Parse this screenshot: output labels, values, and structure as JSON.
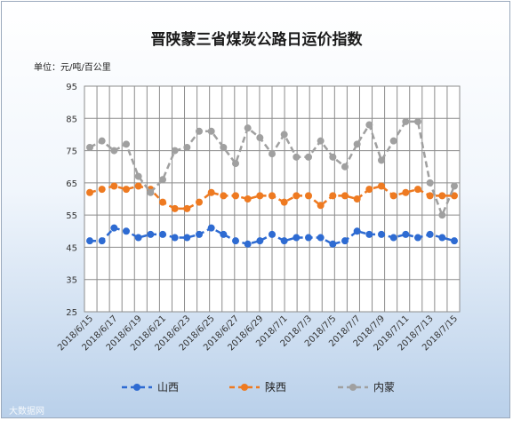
{
  "chart_data": {
    "type": "line",
    "title": "晋陕蒙三省煤炭公路日运价指数",
    "unit_label": "单位：元/吨/百公里",
    "ylim": [
      25,
      95
    ],
    "yticks": [
      25,
      35,
      45,
      55,
      65,
      75,
      85,
      95
    ],
    "grid": true,
    "legend_position": "bottom",
    "x": [
      "2018/6/15",
      "2018/6/16",
      "2018/6/17",
      "2018/6/18",
      "2018/6/19",
      "2018/6/20",
      "2018/6/21",
      "2018/6/22",
      "2018/6/23",
      "2018/6/24",
      "2018/6/25",
      "2018/6/26",
      "2018/6/27",
      "2018/6/28",
      "2018/6/29",
      "2018/6/30",
      "2018/7/1",
      "2018/7/2",
      "2018/7/3",
      "2018/7/4",
      "2018/7/5",
      "2018/7/6",
      "2018/7/7",
      "2018/7/8",
      "2018/7/9",
      "2018/7/10",
      "2018/7/11",
      "2018/7/12",
      "2018/7/13",
      "2018/7/14",
      "2018/7/15"
    ],
    "x_tick_labels": [
      "2018/6/15",
      "2018/6/17",
      "2018/6/19",
      "2018/6/21",
      "2018/6/23",
      "2018/6/25",
      "2018/6/27",
      "2018/6/29",
      "2018/7/1",
      "2018/7/3",
      "2018/7/5",
      "2018/7/7",
      "2018/7/9",
      "2018/7/11",
      "2018/7/13",
      "2018/7/15"
    ],
    "series": [
      {
        "name": "山西",
        "color": "#2e6bd2",
        "values": [
          47,
          47,
          51,
          50,
          48,
          49,
          49,
          48,
          48,
          49,
          51,
          49,
          47,
          46,
          47,
          49,
          47,
          48,
          48,
          48,
          46,
          47,
          50,
          49,
          49,
          48,
          49,
          48,
          49,
          48,
          47
        ]
      },
      {
        "name": "陕西",
        "color": "#ee7a21",
        "values": [
          62,
          63,
          64,
          63,
          64,
          63,
          59,
          57,
          57,
          59,
          62,
          61,
          61,
          60,
          61,
          61,
          59,
          61,
          61,
          58,
          61,
          61,
          60,
          63,
          64,
          61,
          62,
          63,
          61,
          61,
          61
        ]
      },
      {
        "name": "内蒙",
        "color": "#a0a0a0",
        "values": [
          76,
          78,
          75,
          77,
          67,
          62,
          66,
          75,
          76,
          81,
          81,
          76,
          71,
          82,
          79,
          74,
          80,
          73,
          73,
          78,
          73,
          70,
          77,
          83,
          72,
          78,
          84,
          84,
          65,
          55,
          64
        ]
      }
    ]
  },
  "watermark": "大数据网"
}
